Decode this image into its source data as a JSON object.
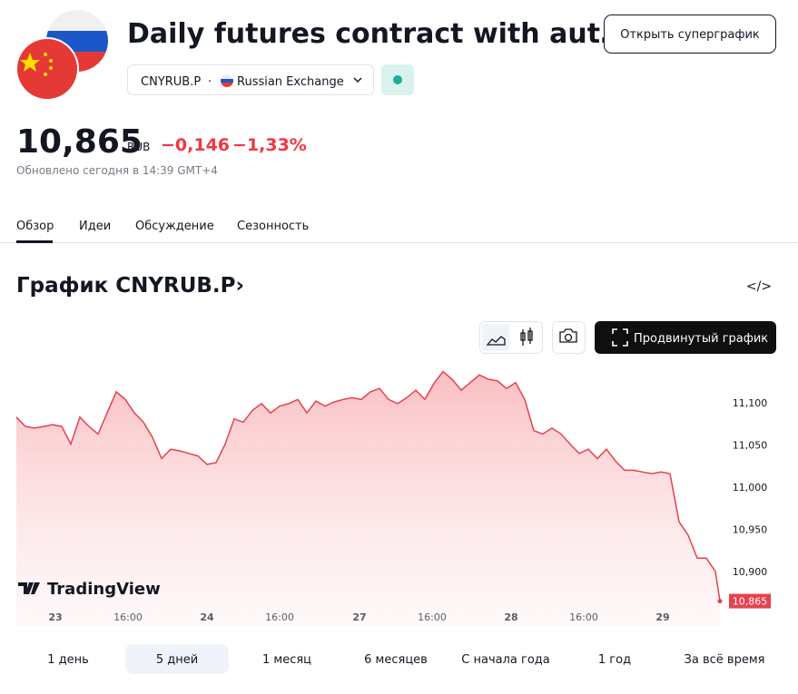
{
  "header": {
    "title": "Daily futures contract with aut…",
    "open_button": "Открыть суперграфик",
    "symbol": "CNYRUB.P",
    "separator": "·",
    "exchange": "Russian Exchange"
  },
  "quote": {
    "price": "10,865",
    "currency": "RUB",
    "change": "−0,146",
    "change_percent": "−1,33%",
    "updated": "Обновлено сегодня в 14:39 GMT+4"
  },
  "tabs": [
    "Обзор",
    "Идеи",
    "Обсуждение",
    "Сезонность"
  ],
  "chart_section": {
    "title": "График CNYRUB.P›",
    "embed_icon": "</>",
    "advanced_button": "Продвинутый график",
    "watermark": "TradingView"
  },
  "chart_data": {
    "type": "line",
    "color": "#e5424d",
    "grid": false,
    "x": [
      0,
      1,
      2,
      3,
      4,
      5,
      6,
      7,
      8,
      9,
      10,
      11,
      12,
      13,
      14,
      15,
      16,
      17,
      18,
      19,
      20,
      21,
      22,
      23,
      24,
      25,
      26,
      27,
      28,
      29,
      30,
      31,
      32,
      33,
      34,
      35,
      36,
      37,
      38,
      39,
      40,
      41,
      42,
      43,
      44,
      45,
      46,
      47,
      48,
      49,
      50,
      51,
      52,
      53,
      54,
      55,
      56,
      57,
      58,
      59,
      60,
      61,
      62,
      63,
      64,
      65,
      66,
      67,
      68,
      69,
      70,
      71,
      72,
      73,
      74,
      75,
      76,
      77,
      77.5
    ],
    "values": [
      11083,
      11072,
      11070,
      11072,
      11074,
      11072,
      11051,
      11083,
      11072,
      11063,
      11088,
      11113,
      11104,
      11088,
      11077,
      11059,
      11034,
      11045,
      11043,
      11040,
      11037,
      11027,
      11029,
      11051,
      11081,
      11077,
      11091,
      11099,
      11088,
      11096,
      11099,
      11104,
      11088,
      11102,
      11096,
      11101,
      11104,
      11106,
      11104,
      11113,
      11117,
      11104,
      11099,
      11106,
      11115,
      11104,
      11123,
      11137,
      11128,
      11115,
      11124,
      11133,
      11128,
      11126,
      11117,
      11124,
      11104,
      11067,
      11063,
      11070,
      11063,
      11051,
      11040,
      11045,
      11034,
      11045,
      11031,
      11020,
      11020,
      11018,
      11016,
      11018,
      11016,
      10959,
      10943,
      10916,
      10916,
      10900,
      10865
    ],
    "value_labels": [
      null,
      null,
      null,
      null,
      null,
      null,
      null,
      null,
      null,
      null,
      null,
      null,
      null,
      null,
      null,
      null,
      null,
      null,
      null,
      null,
      null,
      null,
      null,
      null,
      null,
      null,
      null,
      null,
      null,
      null,
      null,
      null,
      null,
      null,
      null,
      null,
      null,
      null,
      null,
      null,
      null,
      null,
      null,
      null,
      null,
      null,
      null,
      null,
      null,
      null,
      null,
      null,
      null,
      null,
      null,
      null,
      null,
      null,
      null,
      null,
      null,
      null,
      null,
      null,
      null,
      null,
      null,
      null,
      null,
      null,
      null,
      null,
      null,
      null,
      null,
      null,
      null,
      null,
      "10,865"
    ],
    "xlim": [
      0,
      77.5
    ],
    "ylim": [
      10835,
      11150
    ],
    "xticks": [
      {
        "value": 4.3,
        "label": "23"
      },
      {
        "value": 12.3,
        "label": "16:00"
      },
      {
        "value": 21,
        "label": "24"
      },
      {
        "value": 29,
        "label": "16:00"
      },
      {
        "value": 37.8,
        "label": "27"
      },
      {
        "value": 45.8,
        "label": "16:00"
      },
      {
        "value": 54.5,
        "label": "28"
      },
      {
        "value": 62.5,
        "label": "16:00"
      },
      {
        "value": 71.2,
        "label": "29"
      }
    ],
    "yticks": [
      {
        "value": 11100,
        "label": "11,100"
      },
      {
        "value": 11050,
        "label": "11,050"
      },
      {
        "value": 11000,
        "label": "11,000"
      },
      {
        "value": 10950,
        "label": "10,950"
      },
      {
        "value": 10900,
        "label": "10,900"
      }
    ]
  },
  "ranges": [
    "1 день",
    "5 дней",
    "1 месяц",
    "6 месяцев",
    "С начала года",
    "1 год",
    "За всё время"
  ],
  "selected_range": 1
}
